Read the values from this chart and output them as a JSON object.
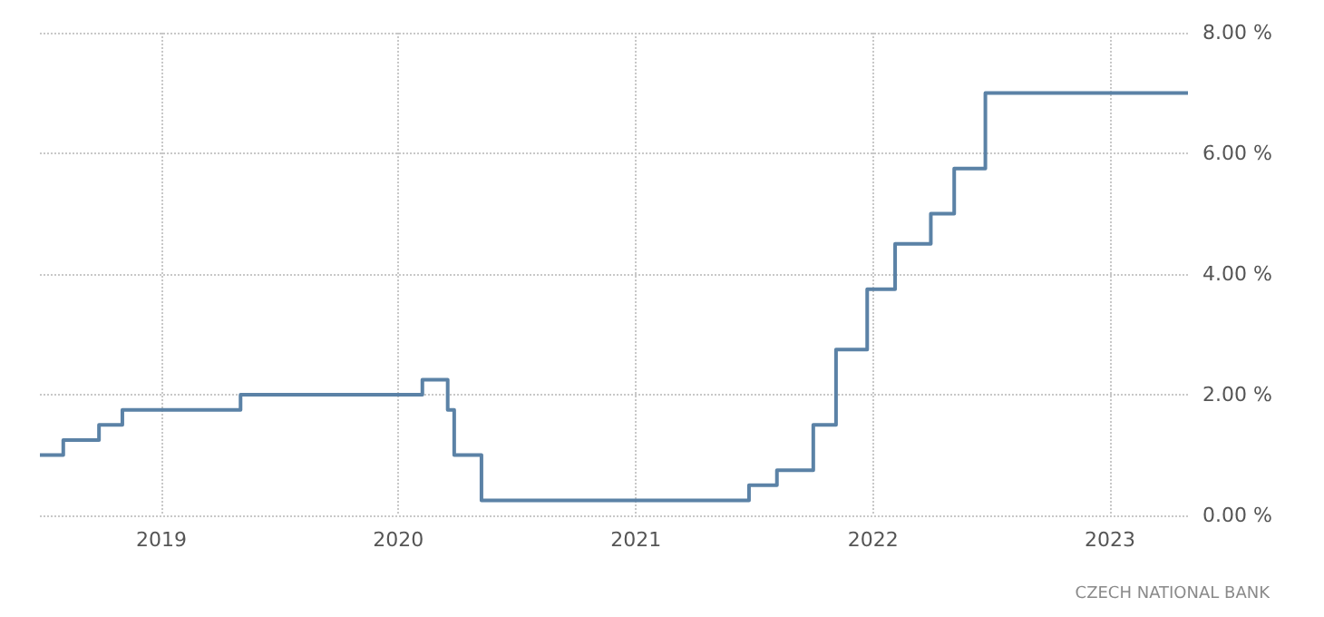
{
  "chart_data": {
    "type": "step",
    "x": [
      "2018-06-28",
      "2018-08-03",
      "2018-09-27",
      "2018-11-02",
      "2019-05-03",
      "2020-02-07",
      "2020-03-17",
      "2020-03-27",
      "2020-05-08",
      "2021-06-24",
      "2021-08-06",
      "2021-10-01",
      "2021-11-05",
      "2021-12-23",
      "2022-02-04",
      "2022-03-31",
      "2022-05-06",
      "2022-06-23",
      "2023-05-01"
    ],
    "series": [
      {
        "color": "#5b82a6",
        "values": [
          1.0,
          1.25,
          1.5,
          1.75,
          2.0,
          2.25,
          1.75,
          1.0,
          0.25,
          0.5,
          0.75,
          1.5,
          2.75,
          3.75,
          4.5,
          5.0,
          5.75,
          7.0,
          7.0
        ]
      }
    ],
    "xlim": [
      "2018-06-28",
      "2023-05-01"
    ],
    "xticks": [
      {
        "value": "2019",
        "label": "2019"
      },
      {
        "value": "2020",
        "label": "2020"
      },
      {
        "value": "2021",
        "label": "2021"
      },
      {
        "value": "2022",
        "label": "2022"
      },
      {
        "value": "2023",
        "label": "2023"
      }
    ],
    "ylim": [
      0,
      8
    ],
    "yticks": [
      {
        "value": 0,
        "label": "0.00 %"
      },
      {
        "value": 2,
        "label": "2.00 %"
      },
      {
        "value": 4,
        "label": "4.00 %"
      },
      {
        "value": 6,
        "label": "6.00 %"
      },
      {
        "value": 8,
        "label": "8.00 %"
      }
    ],
    "grid": true,
    "marker": "none",
    "line_style": "solid",
    "annotations": [
      "CZECH NATIONAL BANK"
    ]
  }
}
